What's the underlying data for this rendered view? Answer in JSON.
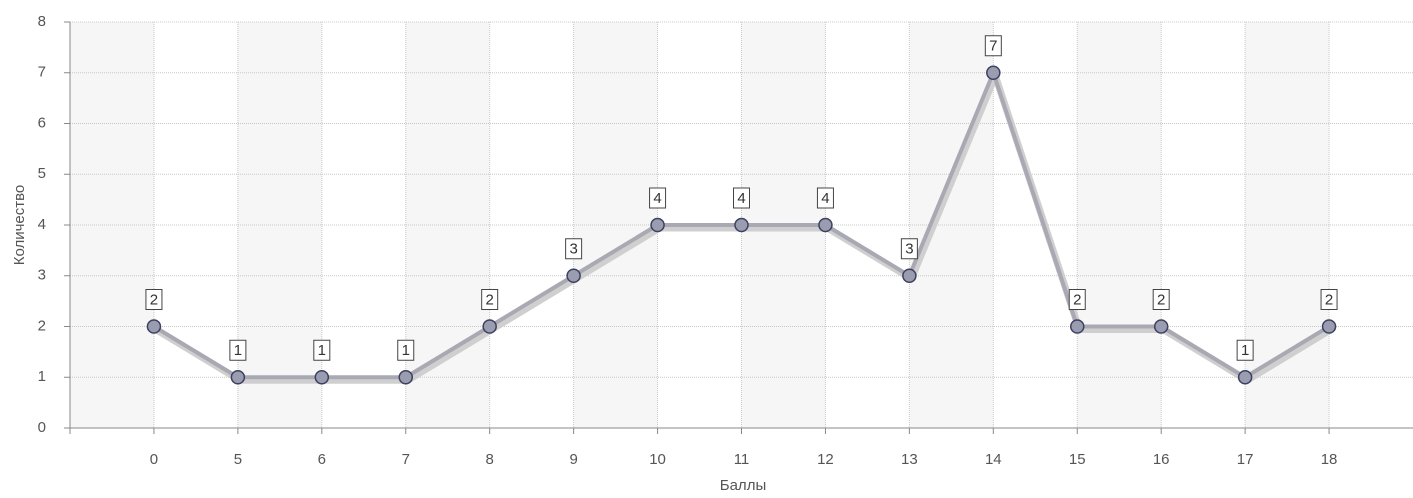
{
  "chart_data": {
    "type": "line",
    "categories": [
      "0",
      "5",
      "6",
      "7",
      "8",
      "9",
      "10",
      "11",
      "12",
      "13",
      "14",
      "15",
      "16",
      "17",
      "18"
    ],
    "series": [
      {
        "color": "#a9a9b3",
        "values": [
          2,
          1,
          1,
          1,
          2,
          3,
          4,
          4,
          4,
          3,
          7,
          2,
          2,
          1,
          2
        ]
      }
    ],
    "ylim": [
      0,
      8
    ],
    "yticks": [
      0,
      1,
      2,
      3,
      4,
      5,
      6,
      7,
      8
    ],
    "grid": true,
    "xlabel": "Баллы",
    "ylabel": "Количество"
  }
}
